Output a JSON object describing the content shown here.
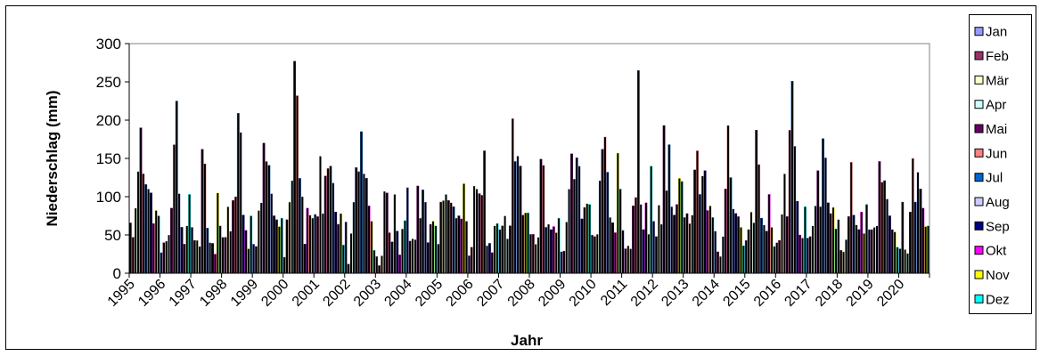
{
  "chart_data": {
    "type": "bar",
    "title": "",
    "xlabel": "Jahr",
    "ylabel": "Niederschlag (mm)",
    "ylim": [
      0,
      300
    ],
    "y_ticks": [
      0,
      50,
      100,
      150,
      200,
      250,
      300
    ],
    "grid": "horizontal",
    "legend_position": "right",
    "years": [
      "1995",
      "1996",
      "1997",
      "1998",
      "1999",
      "2000",
      "2001",
      "2002",
      "2003",
      "2004",
      "2005",
      "2006",
      "2007",
      "2008",
      "2009",
      "2010",
      "2011",
      "2012",
      "2013",
      "2014",
      "2015",
      "2016",
      "2017",
      "2018",
      "2019",
      "2020"
    ],
    "series": [
      {
        "name": "Jan",
        "color": "#9999ff",
        "values": [
          66,
          27,
          60,
          47,
          38,
          21,
          77,
          67,
          22,
          112,
          38,
          23,
          57,
          51,
          28,
          50,
          56,
          68,
          73,
          55,
          43,
          40,
          46,
          70,
          57,
          32
        ]
      },
      {
        "name": "Feb",
        "color": "#993366",
        "values": [
          47,
          40,
          43,
          47,
          35,
          70,
          74,
          12,
          10,
          42,
          93,
          34,
          62,
          51,
          29,
          48,
          32,
          48,
          78,
          28,
          57,
          43,
          48,
          30,
          57,
          93
        ]
      },
      {
        "name": "Mär",
        "color": "#ffffcc",
        "values": [
          85,
          42,
          43,
          87,
          82,
          93,
          153,
          52,
          23,
          45,
          95,
          114,
          75,
          38,
          67,
          51,
          36,
          89,
          65,
          22,
          80,
          77,
          62,
          28,
          60,
          31
        ]
      },
      {
        "name": "Apr",
        "color": "#ccffff",
        "values": [
          133,
          50,
          35,
          55,
          92,
          121,
          78,
          93,
          107,
          44,
          103,
          110,
          45,
          47,
          110,
          121,
          32,
          64,
          76,
          48,
          66,
          130,
          88,
          44,
          62,
          26
        ]
      },
      {
        "name": "Mai",
        "color": "#660066",
        "values": [
          190,
          85,
          162,
          95,
          170,
          277,
          127,
          138,
          105,
          114,
          95,
          104,
          62,
          149,
          156,
          162,
          88,
          193,
          135,
          110,
          187,
          74,
          134,
          74,
          146,
          80
        ]
      },
      {
        "name": "Jun",
        "color": "#ff8080",
        "values": [
          130,
          168,
          143,
          100,
          146,
          232,
          137,
          133,
          53,
          72,
          92,
          102,
          202,
          141,
          123,
          178,
          99,
          108,
          160,
          193,
          142,
          187,
          87,
          145,
          119,
          150
        ]
      },
      {
        "name": "Jul",
        "color": "#0066cc",
        "values": [
          116,
          225,
          59,
          209,
          141,
          124,
          140,
          185,
          41,
          109,
          87,
          160,
          146,
          60,
          151,
          132,
          265,
          168,
          103,
          125,
          72,
          251,
          176,
          76,
          121,
          93
        ]
      },
      {
        "name": "Aug",
        "color": "#ccccff",
        "values": [
          110,
          104,
          40,
          184,
          104,
          100,
          118,
          130,
          103,
          93,
          72,
          36,
          153,
          64,
          140,
          73,
          90,
          87,
          127,
          84,
          63,
          166,
          151,
          63,
          97,
          132
        ]
      },
      {
        "name": "Sep",
        "color": "#000080",
        "values": [
          105,
          60,
          39,
          76,
          75,
          38,
          80,
          124,
          55,
          40,
          75,
          39,
          140,
          57,
          71,
          66,
          57,
          76,
          134,
          78,
          55,
          94,
          92,
          57,
          75,
          110
        ]
      },
      {
        "name": "Okt",
        "color": "#ff00ff",
        "values": [
          65,
          38,
          25,
          56,
          70,
          85,
          64,
          88,
          24,
          64,
          71,
          27,
          76,
          61,
          86,
          53,
          92,
          90,
          82,
          74,
          103,
          50,
          78,
          80,
          57,
          85
        ]
      },
      {
        "name": "Nov",
        "color": "#ffff00",
        "values": [
          82,
          62,
          105,
          32,
          61,
          76,
          78,
          68,
          58,
          68,
          117,
          62,
          79,
          53,
          91,
          157,
          51,
          124,
          88,
          60,
          60,
          46,
          86,
          52,
          54,
          61
        ]
      },
      {
        "name": "Dez",
        "color": "#00ffff",
        "values": [
          75,
          103,
          62,
          75,
          72,
          72,
          37,
          30,
          69,
          62,
          68,
          65,
          79,
          72,
          90,
          110,
          140,
          120,
          73,
          36,
          35,
          87,
          58,
          90,
          34,
          62
        ]
      }
    ]
  }
}
